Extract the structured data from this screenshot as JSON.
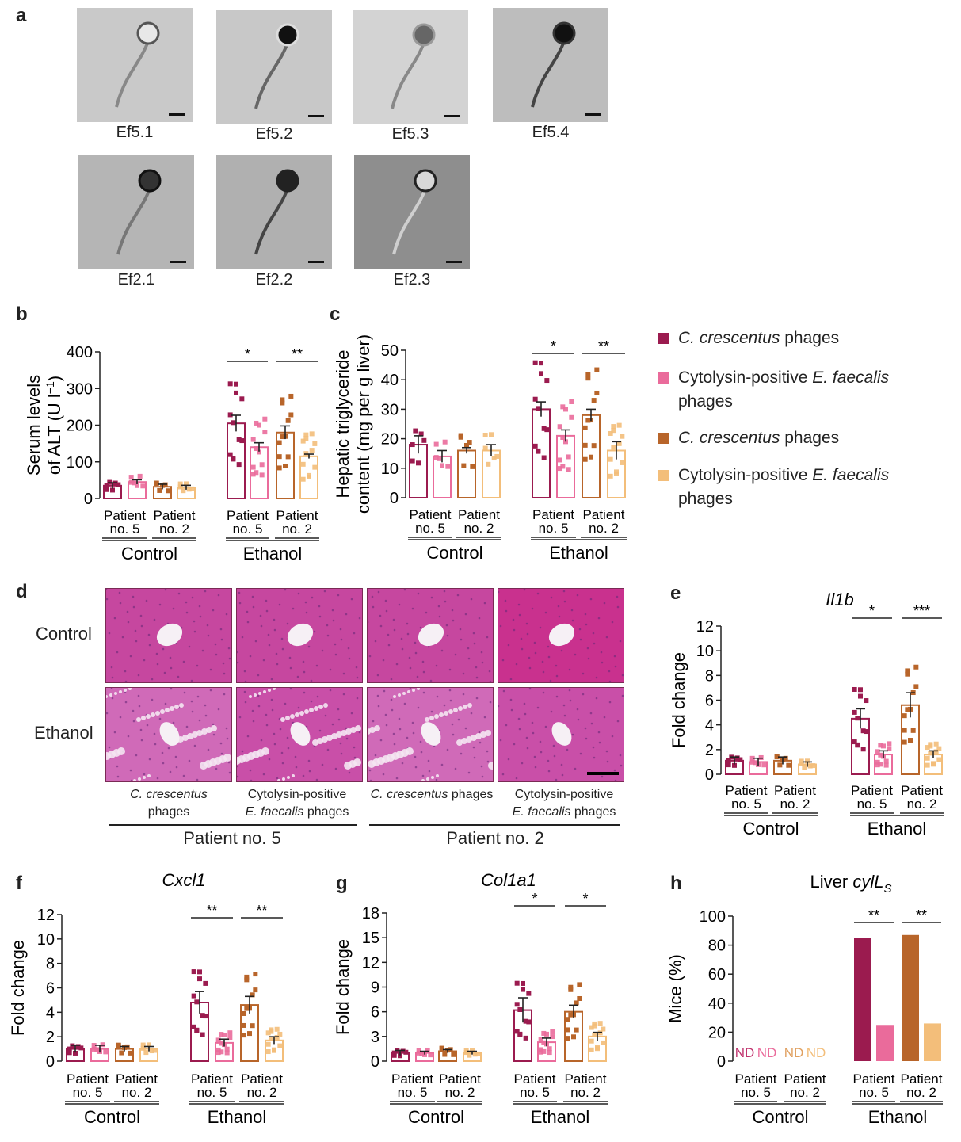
{
  "panels": {
    "a": "a",
    "b": "b",
    "c": "c",
    "d": "d",
    "e": "e",
    "f": "f",
    "g": "g",
    "h": "h"
  },
  "colors": {
    "cc5": "#9b1b4f",
    "ef5": "#ea6b9b",
    "cc2": "#b8652a",
    "ef2": "#f3be7a",
    "nd5": "#c0346e",
    "nd2": "#e0a060"
  },
  "micrographs": [
    "Ef5.1",
    "Ef5.2",
    "Ef5.3",
    "Ef5.4",
    "Ef2.1",
    "Ef2.2",
    "Ef2.3"
  ],
  "legend": [
    {
      "pre": "C. crescentus",
      "post": " phages",
      "line2": ""
    },
    {
      "pre": "Cytolysin-positive ",
      "it": "E. faecalis",
      "line2": "phages"
    },
    {
      "pre": "C. crescentus",
      "post": " phages",
      "line2": ""
    },
    {
      "pre": "Cytolysin-positive ",
      "it": "E. faecalis",
      "line2": "phages"
    }
  ],
  "histology": {
    "rows": [
      "Control",
      "Ethanol"
    ],
    "cols": [
      {
        "l1": "C. crescentus",
        "l2": "phages"
      },
      {
        "l1": "Cytolysin-positive",
        "l2": "E. faecalis phages"
      },
      {
        "l1": "C. crescentus phages",
        "l2": ""
      },
      {
        "l1": "Cytolysin-positive",
        "l2": "E. faecalis phages"
      }
    ],
    "groups": [
      "Patient no. 5",
      "Patient no. 2"
    ]
  },
  "xaxis": {
    "patient": "Patient",
    "no5": "no. 5",
    "no2": "no. 2",
    "control": "Control",
    "ethanol": "Ethanol",
    "nd": "ND"
  },
  "chart_data": [
    {
      "id": "b",
      "type": "bar",
      "ylabel_l1": "Serum levels",
      "ylabel_l2": "of ALT (U l",
      "ylabel_sup": "−1",
      "ylabel_end": ")",
      "ylim": [
        0,
        400
      ],
      "yticks": [
        0,
        100,
        200,
        300,
        400
      ],
      "categories": [
        "Control Patient no. 5 C. crescentus",
        "Control Patient no. 5 E. faecalis",
        "Control Patient no. 2 C. crescentus",
        "Control Patient no. 2 E. faecalis",
        "Ethanol Patient no. 5 C. crescentus",
        "Ethanol Patient no. 5 E. faecalis",
        "Ethanol Patient no. 2 C. crescentus",
        "Ethanol Patient no. 2 E. faecalis"
      ],
      "values": [
        35,
        45,
        32,
        30,
        205,
        140,
        180,
        115
      ],
      "errors": [
        8,
        6,
        7,
        6,
        22,
        12,
        18,
        6
      ],
      "significance": [
        {
          "pair": [
            4,
            5
          ],
          "label": "*"
        },
        {
          "pair": [
            6,
            7
          ],
          "label": "**"
        }
      ]
    },
    {
      "id": "c",
      "type": "bar",
      "ylabel_l1": "Hepatic triglyceride",
      "ylabel_l2": "content (mg per g liver)",
      "ylim": [
        0,
        50
      ],
      "yticks": [
        0,
        10,
        20,
        30,
        40,
        50
      ],
      "values": [
        18,
        14,
        16,
        16,
        30,
        21,
        28,
        16
      ],
      "errors": [
        3,
        2,
        1,
        2,
        2.5,
        2,
        2,
        3
      ],
      "significance": [
        {
          "pair": [
            4,
            5
          ],
          "label": "*"
        },
        {
          "pair": [
            6,
            7
          ],
          "label": "**"
        }
      ]
    },
    {
      "id": "e",
      "type": "bar",
      "title": "Il1b",
      "ylabel": "Fold change",
      "ylim": [
        0,
        12
      ],
      "yticks": [
        0,
        2,
        4,
        6,
        8,
        10,
        12
      ],
      "values": [
        1.1,
        1.0,
        1.1,
        0.8,
        4.5,
        1.6,
        5.6,
        1.6
      ],
      "errors": [
        0.3,
        0.3,
        0.3,
        0.2,
        0.8,
        0.3,
        1.0,
        0.3
      ],
      "significance": [
        {
          "pair": [
            4,
            5
          ],
          "label": "*"
        },
        {
          "pair": [
            6,
            7
          ],
          "label": "***"
        }
      ]
    },
    {
      "id": "f",
      "type": "bar",
      "title": "Cxcl1",
      "ylabel": "Fold change",
      "ylim": [
        0,
        12
      ],
      "yticks": [
        0,
        2,
        4,
        6,
        8,
        10,
        12
      ],
      "values": [
        1.0,
        1.0,
        1.0,
        1.0,
        4.8,
        1.5,
        4.6,
        1.7
      ],
      "errors": [
        0.3,
        0.3,
        0.2,
        0.2,
        0.9,
        0.3,
        0.7,
        0.3
      ],
      "significance": [
        {
          "pair": [
            4,
            5
          ],
          "label": "**"
        },
        {
          "pair": [
            6,
            7
          ],
          "label": "**"
        }
      ]
    },
    {
      "id": "g",
      "type": "bar",
      "title": "Col1a1",
      "ylabel": "Fold change",
      "ylim": [
        0,
        18
      ],
      "yticks": [
        0,
        3,
        6,
        9,
        12,
        15,
        18
      ],
      "values": [
        1.0,
        1.0,
        1.2,
        1.0,
        6.2,
        2.3,
        6.0,
        3.0
      ],
      "errors": [
        0.3,
        0.2,
        0.2,
        0.2,
        1.5,
        0.5,
        0.8,
        0.5
      ],
      "significance": [
        {
          "pair": [
            4,
            5
          ],
          "label": "*"
        },
        {
          "pair": [
            6,
            7
          ],
          "label": "*"
        }
      ]
    },
    {
      "id": "h",
      "type": "bar",
      "title_main": "Liver ",
      "title_it": "cylL",
      "title_sub": "S",
      "ylabel": "Mice (%)",
      "ylim": [
        0,
        100
      ],
      "yticks": [
        0,
        20,
        40,
        60,
        80,
        100
      ],
      "values": [
        0,
        0,
        0,
        0,
        85,
        25,
        87,
        26
      ],
      "nd": [
        true,
        true,
        true,
        true,
        false,
        false,
        false,
        false
      ],
      "significance": [
        {
          "pair": [
            4,
            5
          ],
          "label": "**"
        },
        {
          "pair": [
            6,
            7
          ],
          "label": "**"
        }
      ]
    }
  ]
}
